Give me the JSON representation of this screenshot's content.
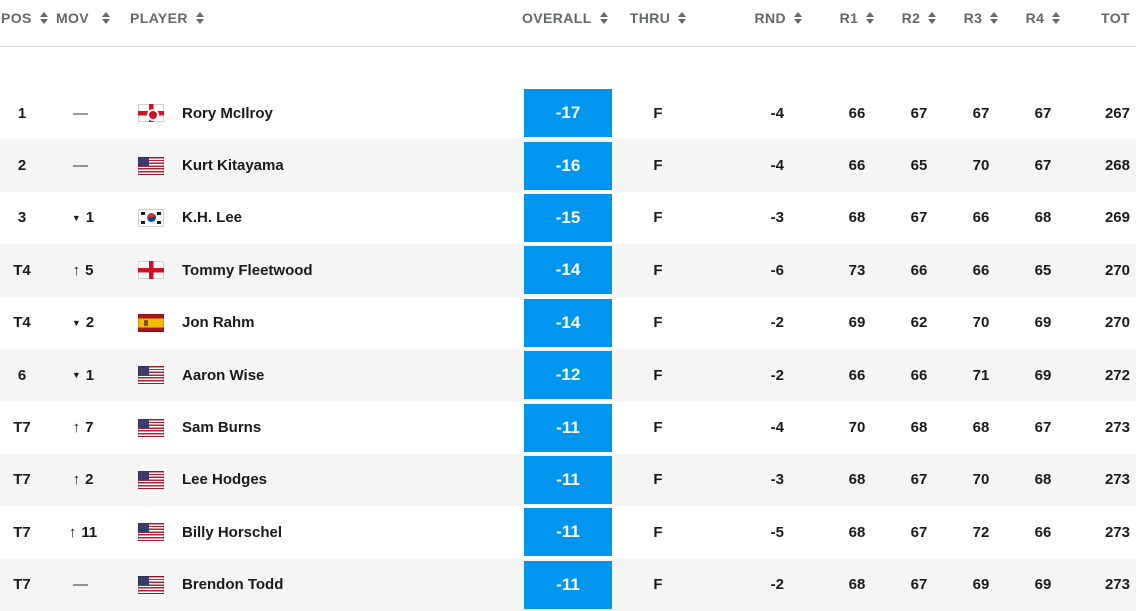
{
  "colors": {
    "accent_blue": "#0096f0",
    "stripe_gray": "#f5f5f5",
    "header_text": "#63666a",
    "header_border": "#dcdee0",
    "body_text": "#1a1a1a",
    "badge_text": "#ffffff"
  },
  "movement_glyphs": {
    "up": "↑",
    "down": "▼",
    "none": "—"
  },
  "columns": [
    {
      "key": "pos",
      "label": "POS",
      "sortable": true
    },
    {
      "key": "mov",
      "label": "MOV",
      "sortable": true
    },
    {
      "key": "player",
      "label": "PLAYER",
      "sortable": true
    },
    {
      "key": "overall",
      "label": "OVERALL",
      "sortable": true
    },
    {
      "key": "thru",
      "label": "THRU",
      "sortable": true
    },
    {
      "key": "rnd",
      "label": "RND",
      "sortable": true
    },
    {
      "key": "r1",
      "label": "R1",
      "sortable": true
    },
    {
      "key": "r2",
      "label": "R2",
      "sortable": true
    },
    {
      "key": "r3",
      "label": "R3",
      "sortable": true
    },
    {
      "key": "r4",
      "label": "R4",
      "sortable": true
    },
    {
      "key": "tot",
      "label": "TOT",
      "sortable": false
    }
  ],
  "rows": [
    {
      "pos": "1",
      "movDir": "none",
      "mov": "",
      "country": "northern-ireland",
      "player": "Rory McIlroy",
      "overall": "-17",
      "thru": "F",
      "rnd": "-4",
      "r1": "66",
      "r2": "67",
      "r3": "67",
      "r4": "67",
      "tot": "267"
    },
    {
      "pos": "2",
      "movDir": "none",
      "mov": "",
      "country": "usa",
      "player": "Kurt Kitayama",
      "overall": "-16",
      "thru": "F",
      "rnd": "-4",
      "r1": "66",
      "r2": "65",
      "r3": "70",
      "r4": "67",
      "tot": "268"
    },
    {
      "pos": "3",
      "movDir": "down",
      "mov": "1",
      "country": "south-korea",
      "player": "K.H. Lee",
      "overall": "-15",
      "thru": "F",
      "rnd": "-3",
      "r1": "68",
      "r2": "67",
      "r3": "66",
      "r4": "68",
      "tot": "269"
    },
    {
      "pos": "T4",
      "movDir": "up",
      "mov": "5",
      "country": "england",
      "player": "Tommy Fleetwood",
      "overall": "-14",
      "thru": "F",
      "rnd": "-6",
      "r1": "73",
      "r2": "66",
      "r3": "66",
      "r4": "65",
      "tot": "270"
    },
    {
      "pos": "T4",
      "movDir": "down",
      "mov": "2",
      "country": "spain",
      "player": "Jon Rahm",
      "overall": "-14",
      "thru": "F",
      "rnd": "-2",
      "r1": "69",
      "r2": "62",
      "r3": "70",
      "r4": "69",
      "tot": "270"
    },
    {
      "pos": "6",
      "movDir": "down",
      "mov": "1",
      "country": "usa",
      "player": "Aaron Wise",
      "overall": "-12",
      "thru": "F",
      "rnd": "-2",
      "r1": "66",
      "r2": "66",
      "r3": "71",
      "r4": "69",
      "tot": "272"
    },
    {
      "pos": "T7",
      "movDir": "up",
      "mov": "7",
      "country": "usa",
      "player": "Sam Burns",
      "overall": "-11",
      "thru": "F",
      "rnd": "-4",
      "r1": "70",
      "r2": "68",
      "r3": "68",
      "r4": "67",
      "tot": "273"
    },
    {
      "pos": "T7",
      "movDir": "up",
      "mov": "2",
      "country": "usa",
      "player": "Lee Hodges",
      "overall": "-11",
      "thru": "F",
      "rnd": "-3",
      "r1": "68",
      "r2": "67",
      "r3": "70",
      "r4": "68",
      "tot": "273"
    },
    {
      "pos": "T7",
      "movDir": "up",
      "mov": "11",
      "country": "usa",
      "player": "Billy Horschel",
      "overall": "-11",
      "thru": "F",
      "rnd": "-5",
      "r1": "68",
      "r2": "67",
      "r3": "72",
      "r4": "66",
      "tot": "273"
    },
    {
      "pos": "T7",
      "movDir": "none",
      "mov": "",
      "country": "usa",
      "player": "Brendon Todd",
      "overall": "-11",
      "thru": "F",
      "rnd": "-2",
      "r1": "68",
      "r2": "67",
      "r3": "69",
      "r4": "69",
      "tot": "273"
    }
  ]
}
